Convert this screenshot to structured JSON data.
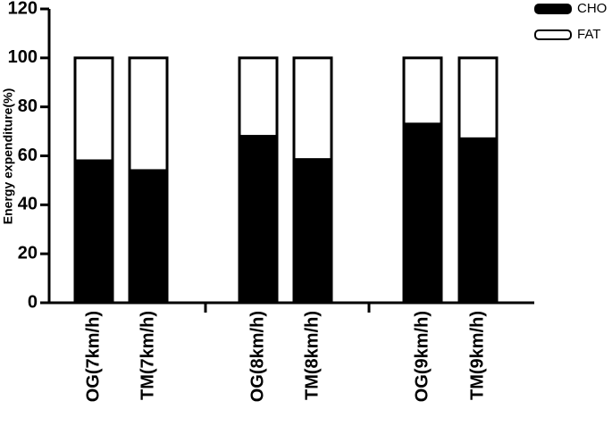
{
  "chart_data": {
    "type": "stacked-bar",
    "y_label": "Energy expenditure(%)",
    "categories": [
      "OG(7km/h)",
      "TM(7km/h)",
      "OG(8km/h)",
      "TM(8km/h)",
      "OG(9km/h)",
      "TM(9km/h)"
    ],
    "series": [
      {
        "name": "CHO",
        "color": "#000000",
        "values": [
          58,
          54,
          68,
          58.5,
          73,
          67
        ]
      },
      {
        "name": "FAT",
        "color": "#ffffff",
        "values": [
          42,
          46,
          32,
          41.5,
          27,
          33
        ]
      }
    ],
    "ylim": [
      0,
      120
    ],
    "yticks": [
      0,
      20,
      40,
      60,
      80,
      100,
      120
    ]
  }
}
